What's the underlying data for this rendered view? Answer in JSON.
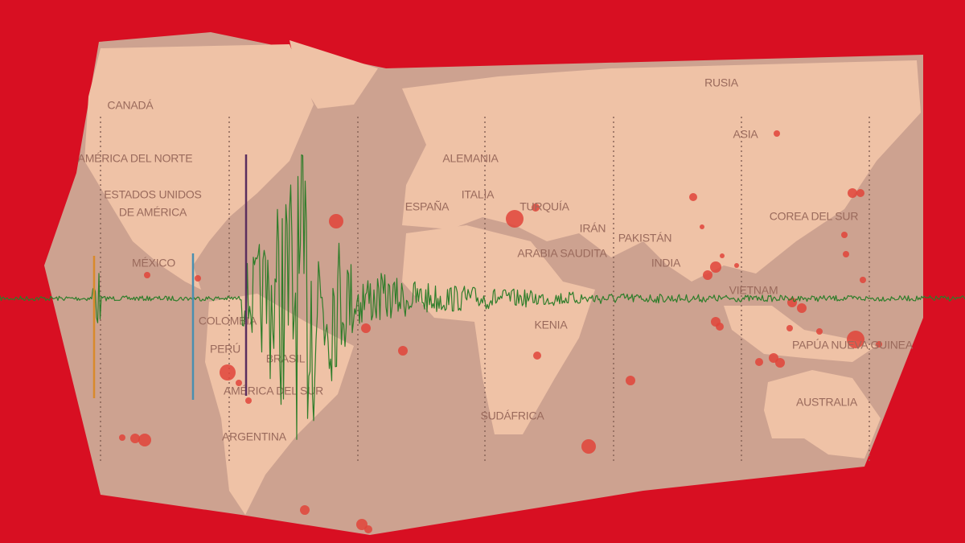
{
  "map": {
    "labels": [
      "CANADÁ",
      "AMÉRICA DEL NORTE",
      "ESTADOS UNIDOS",
      "DE AMÉRICA",
      "MÉXICO",
      "COLOMBIA",
      "PERÚ",
      "BRASIL",
      "AMÉRICA DEL SUR",
      "ARGENTINA",
      "ALEMANIA",
      "ITALIA",
      "ESPAÑA",
      "TURQUÍA",
      "IRÁN",
      "PAKISTÁN",
      "ARABIA SAUDITA",
      "INDIA",
      "KENIA",
      "SUDÁFRICA",
      "RUSIA",
      "ASIA",
      "COREA DEL SUR",
      "VIETNAM",
      "PAPÚA NUEVA GUINEA",
      "AUSTRALIA"
    ]
  }
}
